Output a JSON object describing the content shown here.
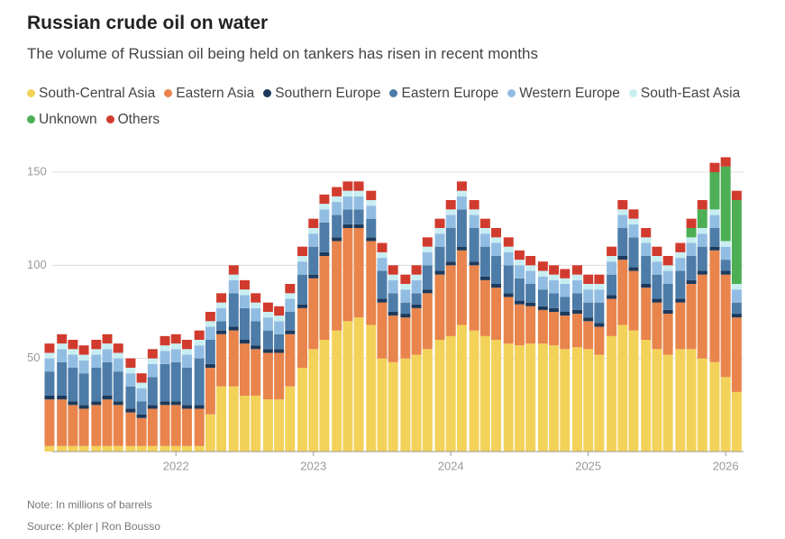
{
  "chart_data": {
    "type": "stacked_bar",
    "title": "Russian crude oil on water",
    "subtitle": "The volume of Russian oil being held on tankers has risen in recent months",
    "note": "Note: In millions of barrels",
    "source": "Source: Kpler | Ron Bousso",
    "x": [
      2021.08,
      2021.17,
      2021.25,
      2021.33,
      2021.42,
      2021.5,
      2021.58,
      2021.67,
      2021.75,
      2021.83,
      2021.92,
      2022,
      2022.08,
      2022.17,
      2022.25,
      2022.33,
      2022.42,
      2022.5,
      2022.58,
      2022.67,
      2022.75,
      2022.83,
      2022.92,
      2023,
      2023.08,
      2023.17,
      2023.25,
      2023.33,
      2023.42,
      2023.5,
      2023.58,
      2023.67,
      2023.75,
      2023.83,
      2023.92,
      2024,
      2024.08,
      2024.17,
      2024.25,
      2024.33,
      2024.42,
      2024.5,
      2024.58,
      2024.67,
      2024.75,
      2024.83,
      2024.92,
      2025,
      2025.08,
      2025.17,
      2025.25,
      2025.33,
      2025.42,
      2025.5,
      2025.58,
      2025.67,
      2025.75,
      2025.83,
      2025.92,
      2026,
      2026.08
    ],
    "xlim": [
      2021.1,
      2026.13
    ],
    "xticks": [
      2022,
      2023,
      2024,
      2025,
      2026
    ],
    "ylim": [
      0,
      165
    ],
    "yticks": [
      50,
      100,
      150
    ],
    "grid": true,
    "series": [
      {
        "name": "South-Central Asia",
        "color": "#f3d25a",
        "values": [
          3,
          3,
          3,
          3,
          3,
          3,
          3,
          3,
          3,
          3,
          3,
          3,
          3,
          3,
          20,
          35,
          35,
          30,
          30,
          28,
          28,
          35,
          45,
          55,
          60,
          65,
          70,
          72,
          68,
          50,
          48,
          50,
          52,
          55,
          60,
          62,
          68,
          65,
          62,
          60,
          58,
          57,
          58,
          58,
          57,
          55,
          56,
          55,
          52,
          62,
          68,
          65,
          60,
          55,
          52,
          55,
          55,
          50,
          48,
          40,
          32
        ]
      },
      {
        "name": "Eastern Asia",
        "color": "#e8844c",
        "values": [
          25,
          25,
          22,
          20,
          22,
          25,
          22,
          18,
          15,
          20,
          22,
          22,
          20,
          20,
          25,
          28,
          30,
          28,
          25,
          25,
          25,
          28,
          32,
          38,
          45,
          48,
          50,
          48,
          45,
          30,
          25,
          22,
          25,
          30,
          35,
          38,
          40,
          35,
          30,
          28,
          25,
          22,
          20,
          18,
          18,
          18,
          18,
          15,
          15,
          20,
          35,
          32,
          28,
          25,
          22,
          25,
          35,
          45,
          60,
          55,
          40
        ]
      },
      {
        "name": "Southern Europe",
        "color": "#1d3a5c",
        "values": [
          2,
          2,
          2,
          2,
          2,
          2,
          2,
          2,
          2,
          2,
          2,
          2,
          2,
          2,
          2,
          2,
          2,
          2,
          2,
          2,
          2,
          2,
          2,
          2,
          2,
          2,
          2,
          2,
          2,
          2,
          2,
          2,
          2,
          2,
          2,
          2,
          2,
          2,
          2,
          2,
          2,
          2,
          2,
          2,
          2,
          2,
          2,
          2,
          2,
          2,
          2,
          2,
          2,
          2,
          2,
          2,
          2,
          2,
          2,
          2,
          2
        ]
      },
      {
        "name": "Eastern Europe",
        "color": "#4d7ca8",
        "values": [
          13,
          18,
          18,
          17,
          18,
          18,
          16,
          12,
          7,
          15,
          20,
          21,
          20,
          25,
          13,
          5,
          18,
          17,
          13,
          10,
          8,
          10,
          16,
          15,
          16,
          12,
          8,
          8,
          10,
          15,
          10,
          6,
          6,
          13,
          13,
          18,
          20,
          18,
          16,
          15,
          15,
          12,
          10,
          9,
          8,
          8,
          9,
          8,
          11,
          11,
          15,
          16,
          15,
          13,
          14,
          15,
          13,
          13,
          10,
          6,
          6
        ]
      },
      {
        "name": "Western Europe",
        "color": "#92bde3",
        "values": [
          7,
          7,
          7,
          7,
          7,
          7,
          7,
          7,
          7,
          7,
          7,
          7,
          7,
          7,
          7,
          7,
          7,
          7,
          7,
          7,
          7,
          7,
          7,
          7,
          7,
          7,
          7,
          7,
          7,
          7,
          7,
          7,
          7,
          7,
          7,
          7,
          7,
          7,
          7,
          7,
          7,
          7,
          7,
          7,
          7,
          7,
          7,
          7,
          7,
          7,
          7,
          7,
          7,
          7,
          7,
          7,
          7,
          7,
          7,
          7,
          7
        ]
      },
      {
        "name": "South-East Asia",
        "color": "#c8eef2",
        "values": [
          3,
          3,
          3,
          3,
          3,
          3,
          3,
          3,
          3,
          3,
          3,
          3,
          3,
          3,
          3,
          3,
          3,
          3,
          3,
          3,
          3,
          3,
          3,
          3,
          3,
          3,
          3,
          3,
          3,
          3,
          3,
          3,
          3,
          3,
          3,
          3,
          3,
          3,
          3,
          3,
          3,
          3,
          3,
          3,
          3,
          3,
          3,
          3,
          3,
          3,
          3,
          3,
          3,
          3,
          3,
          3,
          3,
          3,
          3,
          3,
          3
        ]
      },
      {
        "name": "Unknown",
        "color": "#4caf55",
        "values": [
          0,
          0,
          0,
          0,
          0,
          0,
          0,
          0,
          0,
          0,
          0,
          0,
          0,
          0,
          0,
          0,
          0,
          0,
          0,
          0,
          0,
          0,
          0,
          0,
          0,
          0,
          0,
          0,
          0,
          0,
          0,
          0,
          0,
          0,
          0,
          0,
          0,
          0,
          0,
          0,
          0,
          0,
          0,
          0,
          0,
          0,
          0,
          0,
          0,
          0,
          0,
          0,
          0,
          0,
          0,
          0,
          5,
          10,
          20,
          40,
          45
        ]
      },
      {
        "name": "Others",
        "color": "#d13b2e",
        "values": [
          5,
          5,
          5,
          5,
          5,
          5,
          5,
          5,
          5,
          5,
          5,
          5,
          5,
          5,
          5,
          5,
          5,
          5,
          5,
          5,
          5,
          5,
          5,
          5,
          5,
          5,
          5,
          5,
          5,
          5,
          5,
          5,
          5,
          5,
          5,
          5,
          5,
          5,
          5,
          5,
          5,
          5,
          5,
          5,
          5,
          5,
          5,
          5,
          5,
          5,
          5,
          5,
          5,
          5,
          5,
          5,
          5,
          5,
          5,
          5,
          5
        ]
      }
    ]
  }
}
